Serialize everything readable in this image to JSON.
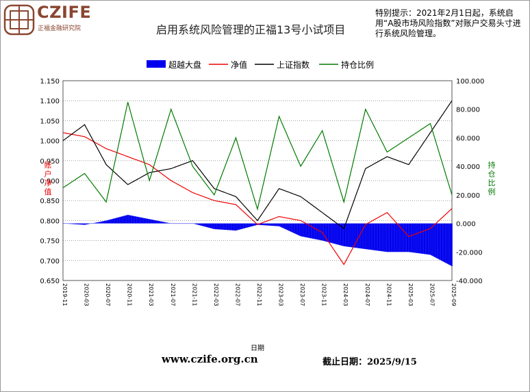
{
  "header": {
    "brand": "CZIFE",
    "brand_sub": "正福金融研究院",
    "title": "启用系统风险管理的正福13号小试项目",
    "notice": "特别提示：2021年2月1日起，系统启用“A股市场风险指数”对账户交易头寸进行系统风险管理。"
  },
  "footer": {
    "url": "www.czife.org.cn",
    "date": "截止日期：2025/9/15"
  },
  "colors": {
    "excess": "#0000ee",
    "nav": "#ee0000",
    "index": "#000000",
    "position": "#007a00",
    "brand": "#8a4630"
  },
  "chart_data": {
    "type": "line",
    "xlabel": "日期",
    "ylabel_left": "账户净值",
    "ylabel_right": "持仓比例",
    "ylim_left": [
      0.65,
      1.15
    ],
    "ylim_right": [
      -40,
      100
    ],
    "yticks_left": [
      "1.150",
      "1.100",
      "1.050",
      "1.000",
      "0.950",
      "0.900",
      "0.850",
      "0.800",
      "0.750",
      "0.700",
      "0.650"
    ],
    "yticks_right": [
      "100.000",
      "80.000",
      "60.000",
      "40.000",
      "20.000",
      "0.000",
      "-20.000",
      "-40.000"
    ],
    "grid": "horizontal dashed",
    "legend_position": "top",
    "legend": [
      "超越大盘",
      "净值",
      "上证指数",
      "持仓比例"
    ],
    "x": [
      "2019-11",
      "2020-03",
      "2020-07",
      "2020-11",
      "2021-03",
      "2021-07",
      "2021-11",
      "2022-03",
      "2022-07",
      "2022-11",
      "2023-03",
      "2023-07",
      "2023-11",
      "2024-03",
      "2024-07",
      "2024-11",
      "2025-03",
      "2025-07",
      "2025-09"
    ],
    "series": [
      {
        "name": "超越大盘",
        "axis": "right",
        "type": "area",
        "values": [
          0,
          -1,
          2,
          6,
          3,
          0,
          0,
          -4,
          -5,
          -1,
          -2,
          -9,
          -12,
          -16,
          -18,
          -20,
          -20,
          -22,
          -30
        ]
      },
      {
        "name": "净值",
        "axis": "left",
        "values": [
          1.02,
          1.01,
          0.98,
          0.96,
          0.94,
          0.9,
          0.87,
          0.85,
          0.84,
          0.79,
          0.81,
          0.8,
          0.77,
          0.69,
          0.79,
          0.82,
          0.76,
          0.78,
          0.83
        ]
      },
      {
        "name": "上证指数",
        "axis": "left",
        "values": [
          1.0,
          1.04,
          0.94,
          0.89,
          0.92,
          0.93,
          0.95,
          0.88,
          0.86,
          0.8,
          0.88,
          0.86,
          0.82,
          0.78,
          0.93,
          0.96,
          0.94,
          1.02,
          1.1
        ]
      },
      {
        "name": "持仓比例",
        "axis": "right",
        "values": [
          25,
          35,
          15,
          85,
          30,
          80,
          40,
          20,
          60,
          10,
          75,
          40,
          65,
          15,
          80,
          50,
          60,
          70,
          20
        ]
      }
    ]
  }
}
